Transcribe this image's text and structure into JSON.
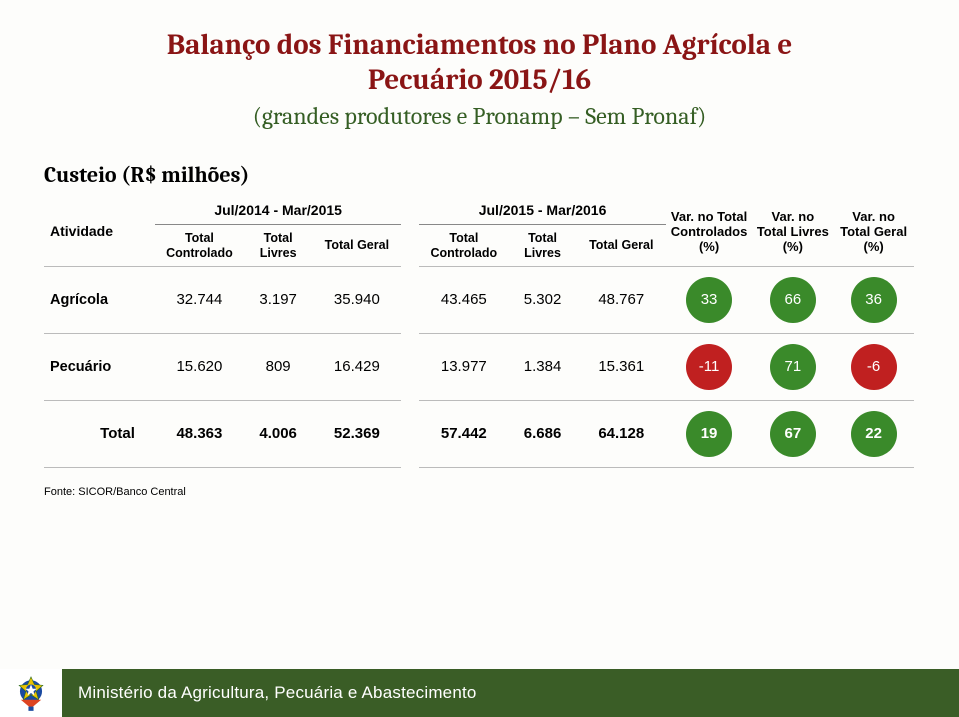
{
  "colors": {
    "title": "#8a1515",
    "subtitle": "#355e24",
    "footer_bg": "#3a5d26",
    "badge_green": "#3a8a2a",
    "badge_red": "#c02020"
  },
  "heading": {
    "line1": "Balanço dos Financiamentos no Plano Agrícola e",
    "line2": "Pecuário 2015/16",
    "line3": "(grandes produtores e Pronamp – Sem Pronaf)"
  },
  "section_label": "Custeio (R$ milhões)",
  "table": {
    "activity_header": "Atividade",
    "periods": [
      "Jul/2014 - Mar/2015",
      "Jul/2015 - Mar/2016"
    ],
    "col_headers": {
      "controlado": "Total Controlado",
      "livres": "Total Livres",
      "geral": "Total Geral",
      "var_controlados": "Var. no Total Controlados (%)",
      "var_livres": "Var. no Total Livres (%)",
      "var_geral": "Var. no Total Geral (%)"
    },
    "rows": [
      {
        "label": "Agrícola",
        "p1": {
          "controlado": "32.744",
          "livres": "3.197",
          "geral": "35.940"
        },
        "p2": {
          "controlado": "43.465",
          "livres": "5.302",
          "geral": "48.767"
        },
        "vars": [
          {
            "value": "33",
            "color": "#3a8a2a"
          },
          {
            "value": "66",
            "color": "#3a8a2a"
          },
          {
            "value": "36",
            "color": "#3a8a2a"
          }
        ]
      },
      {
        "label": "Pecuário",
        "p1": {
          "controlado": "15.620",
          "livres": "809",
          "geral": "16.429"
        },
        "p2": {
          "controlado": "13.977",
          "livres": "1.384",
          "geral": "15.361"
        },
        "vars": [
          {
            "value": "-11",
            "color": "#c02020"
          },
          {
            "value": "71",
            "color": "#3a8a2a"
          },
          {
            "value": "-6",
            "color": "#c02020"
          }
        ]
      }
    ],
    "total_row": {
      "label": "Total",
      "p1": {
        "controlado": "48.363",
        "livres": "4.006",
        "geral": "52.369"
      },
      "p2": {
        "controlado": "57.442",
        "livres": "6.686",
        "geral": "64.128"
      },
      "vars": [
        {
          "value": "19",
          "color": "#3a8a2a"
        },
        {
          "value": "67",
          "color": "#3a8a2a"
        },
        {
          "value": "22",
          "color": "#3a8a2a"
        }
      ]
    }
  },
  "source": "Fonte: SICOR/Banco Central",
  "footer_text": "Ministério da Agricultura, Pecuária e Abastecimento"
}
